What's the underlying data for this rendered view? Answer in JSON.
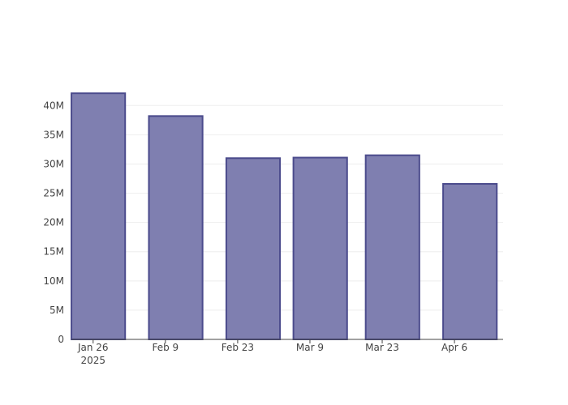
{
  "chart_data": {
    "type": "bar",
    "x": [
      "2025-01-27",
      "2025-02-11",
      "2025-02-26",
      "2025-03-11",
      "2025-03-25",
      "2025-04-09"
    ],
    "values": [
      42100000,
      38200000,
      31000000,
      31100000,
      31500000,
      26600000
    ],
    "color": "#7f7fb0",
    "edge_color": "#4b4b8c",
    "xlim": [
      "2025-01-21T19:00",
      "2025-04-15T10:00"
    ],
    "xticks": [
      {
        "value": "2025-01-26",
        "label": [
          "Jan 26",
          "2025"
        ]
      },
      {
        "value": "2025-02-09",
        "label": "Feb 9"
      },
      {
        "value": "2025-02-23",
        "label": "Feb 23"
      },
      {
        "value": "2025-03-09",
        "label": "Mar 9"
      },
      {
        "value": "2025-03-23",
        "label": "Mar 23"
      },
      {
        "value": "2025-04-06",
        "label": "Apr 6"
      }
    ],
    "ylim": [
      0,
      44200000
    ],
    "yticks": [
      0,
      {
        "value": 5000000,
        "label": "5M"
      },
      {
        "value": 10000000,
        "label": "10M"
      },
      {
        "value": 15000000,
        "label": "15M"
      },
      {
        "value": 20000000,
        "label": "20M"
      },
      {
        "value": 25000000,
        "label": "25M"
      },
      {
        "value": 30000000,
        "label": "30M"
      },
      {
        "value": 35000000,
        "label": "35M"
      },
      {
        "value": 40000000,
        "label": "40M"
      }
    ],
    "grid": true
  }
}
